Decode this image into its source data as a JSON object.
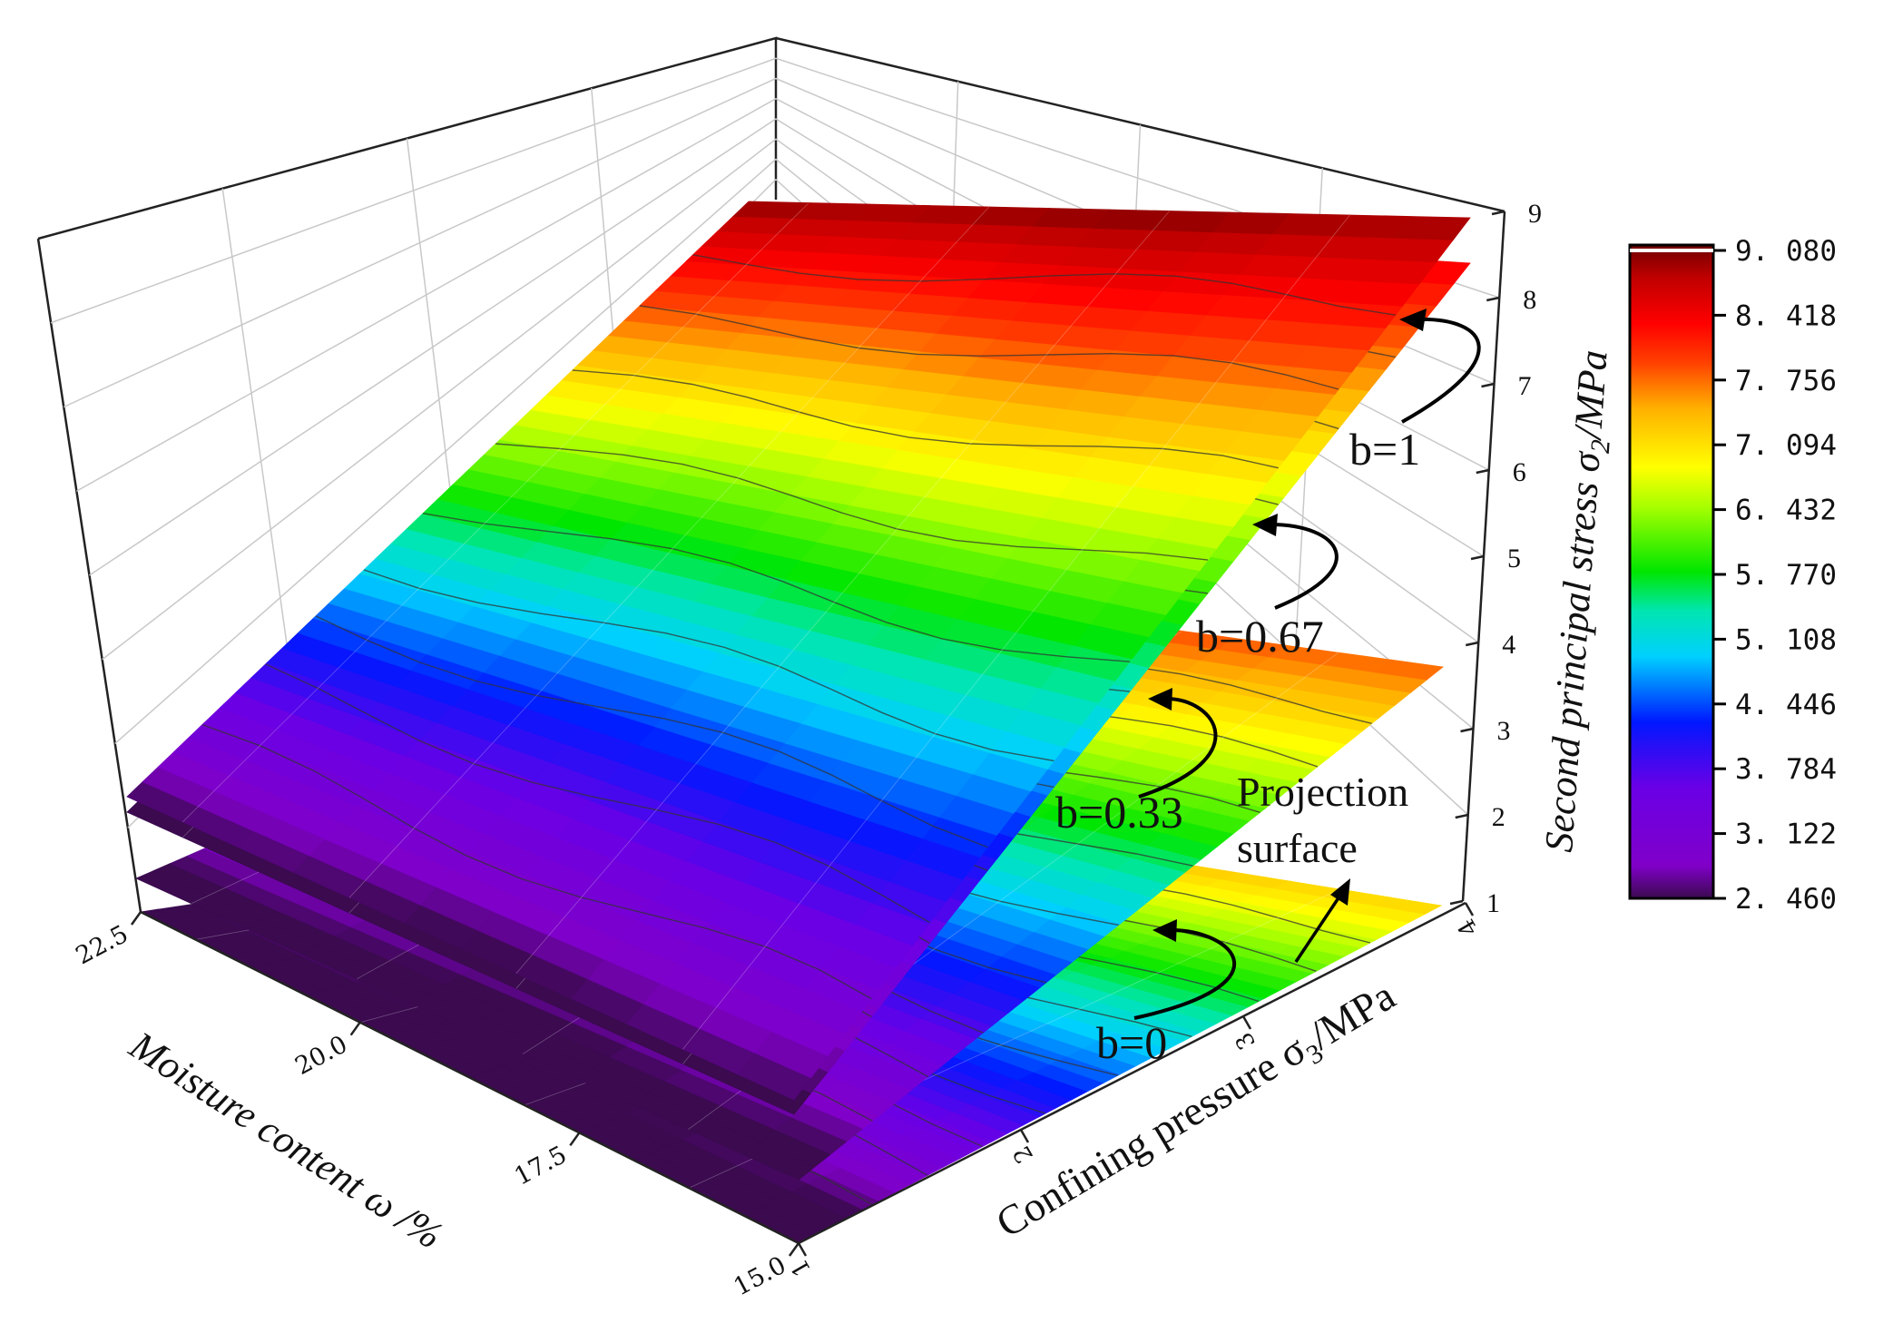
{
  "chart_data": {
    "type": "surface3d",
    "x_axis": {
      "label": "Moisture content ω /%",
      "ticks": [
        "15.0",
        "17.5",
        "20.0",
        "22.5"
      ],
      "range": [
        15,
        22.5
      ]
    },
    "y_axis": {
      "label": "Confining pressure σ3/MPa",
      "label_prefix": "Confining pressure σ",
      "label_sub": "3",
      "label_suffix": "/MPa",
      "ticks": [
        "1",
        "2",
        "3",
        "4"
      ],
      "range": [
        1,
        4
      ]
    },
    "z_axis": {
      "label": "Second principal stress σ2/MPa",
      "label_prefix": "Second principal stress σ",
      "label_sub": "2",
      "label_suffix": "/MPa",
      "ticks": [
        "1",
        "2",
        "3",
        "4",
        "5",
        "6",
        "7",
        "8",
        "9"
      ],
      "range": [
        1,
        9
      ]
    },
    "colorbar": {
      "labels": [
        "9.080",
        "8.418",
        "7.756",
        "7.094",
        "6.432",
        "5.770",
        "5.108",
        "4.446",
        "3.784",
        "3.122",
        "2.460"
      ],
      "min": 2.46,
      "max": 9.08
    },
    "surfaces": [
      {
        "name": "b=1",
        "z_low": 2.45,
        "z_high": 8.95
      },
      {
        "name": "b=0.67",
        "z_low": 2.3,
        "z_high": 8.4
      },
      {
        "name": "b=0.33",
        "z_low": 2.15,
        "z_high": 7.8
      },
      {
        "name": "b=0",
        "z_low": 2.0,
        "z_high": 7.2
      }
    ],
    "annotations": [
      {
        "text": "b=1"
      },
      {
        "text": "b=0.67"
      },
      {
        "text": "b=0.33"
      },
      {
        "text": "b=0"
      },
      {
        "text_line1": "Projection",
        "text_line2": "surface"
      }
    ]
  }
}
